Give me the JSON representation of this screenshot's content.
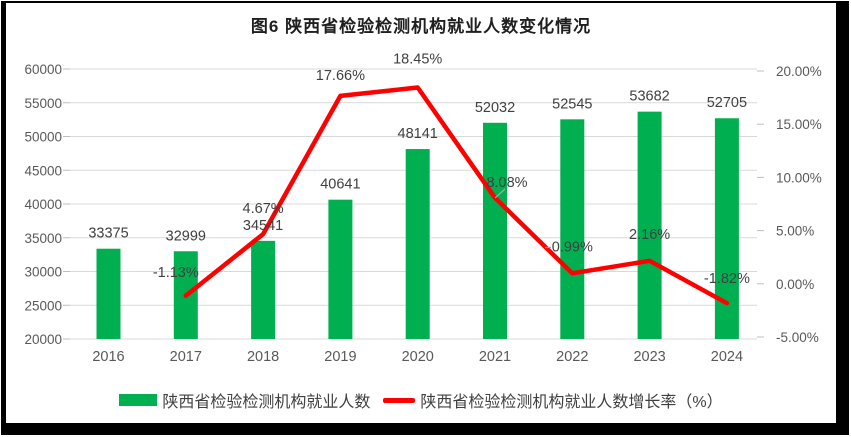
{
  "figure": {
    "title": "图6 陕西省检验检测机构就业人数变化情况"
  },
  "colors": {
    "bar": "#00B050",
    "line": "#FF0000",
    "grid": "#D9D9D9",
    "tick": "#BFBFBF",
    "axis_text": "#595959",
    "label_text": "#404040",
    "leader": "#A6A6A6"
  },
  "legend": {
    "bar_label": "陕西省检验检测机构就业人数",
    "line_label": "陕西省检验检测机构就业人数增长率（%）"
  },
  "chart_data": {
    "type": "bar",
    "subtype": "combo-bar-line",
    "title": "图6 陕西省检验检测机构就业人数变化情况",
    "categories": [
      "2016",
      "2017",
      "2018",
      "2019",
      "2020",
      "2021",
      "2022",
      "2023",
      "2024"
    ],
    "series": [
      {
        "name": "陕西省检验检测机构就业人数",
        "type": "bar",
        "axis": "left",
        "values": [
          33375,
          32999,
          34541,
          40641,
          48141,
          52032,
          52545,
          53682,
          52705
        ],
        "labels": [
          "33375",
          "32999",
          "34541",
          "40641",
          "48141",
          "52032",
          "52545",
          "53682",
          "52705"
        ]
      },
      {
        "name": "陕西省检验检测机构就业人数增长率（%）",
        "type": "line",
        "axis": "right",
        "values": [
          null,
          -1.13,
          4.67,
          17.66,
          18.45,
          8.08,
          0.99,
          2.16,
          -1.82
        ],
        "labels": [
          "",
          "-1.13%",
          "4.67%",
          "17.66%",
          "18.45%",
          "8.08%",
          "0.99%",
          "2.16%",
          "-1.82%"
        ]
      }
    ],
    "left_axis": {
      "min": 20000,
      "max": 60000,
      "step": 5000,
      "tick_labels": [
        "60000",
        "55000",
        "50000",
        "45000",
        "40000",
        "35000",
        "30000",
        "25000",
        "20000"
      ]
    },
    "right_axis": {
      "min": -5,
      "max": 20,
      "step": 5,
      "tick_labels": [
        "20.00%",
        "15.00%",
        "10.00%",
        "5.00%",
        "0.00%",
        "-5.00%"
      ]
    },
    "grid": true,
    "legend_position": "bottom",
    "xlabel": "",
    "ylabel": ""
  }
}
